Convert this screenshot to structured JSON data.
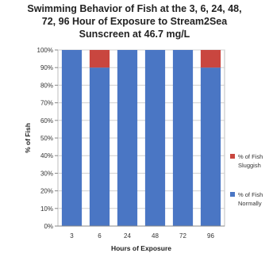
{
  "chart_data": {
    "type": "bar",
    "stacked": true,
    "title_lines": [
      "Swimming Behavior of Fish at the 3, 6, 24, 48,",
      "72, 96 Hour of Exposure to Stream2Sea",
      "Sunscreen at 46.7 mg/L"
    ],
    "xlabel": "Hours of Exposure",
    "ylabel": "% of Fish",
    "categories": [
      "3",
      "6",
      "24",
      "48",
      "72",
      "96"
    ],
    "y_ticks": [
      "0%",
      "10%",
      "20%",
      "30%",
      "40%",
      "50%",
      "60%",
      "70%",
      "80%",
      "90%",
      "100%"
    ],
    "ylim": [
      0,
      100
    ],
    "grid": true,
    "legend_position": "right",
    "series": [
      {
        "name": "% of Fish Normally",
        "legend_lines": [
          "% of Fish",
          "Normally"
        ],
        "values": [
          100,
          90,
          100,
          100,
          100,
          90
        ],
        "color": "#4a76c4"
      },
      {
        "name": "% of Fish Sluggish",
        "legend_lines": [
          "% of Fish",
          "Sluggish"
        ],
        "values": [
          0,
          10,
          0,
          0,
          0,
          10
        ],
        "color": "#c9463f"
      }
    ]
  }
}
